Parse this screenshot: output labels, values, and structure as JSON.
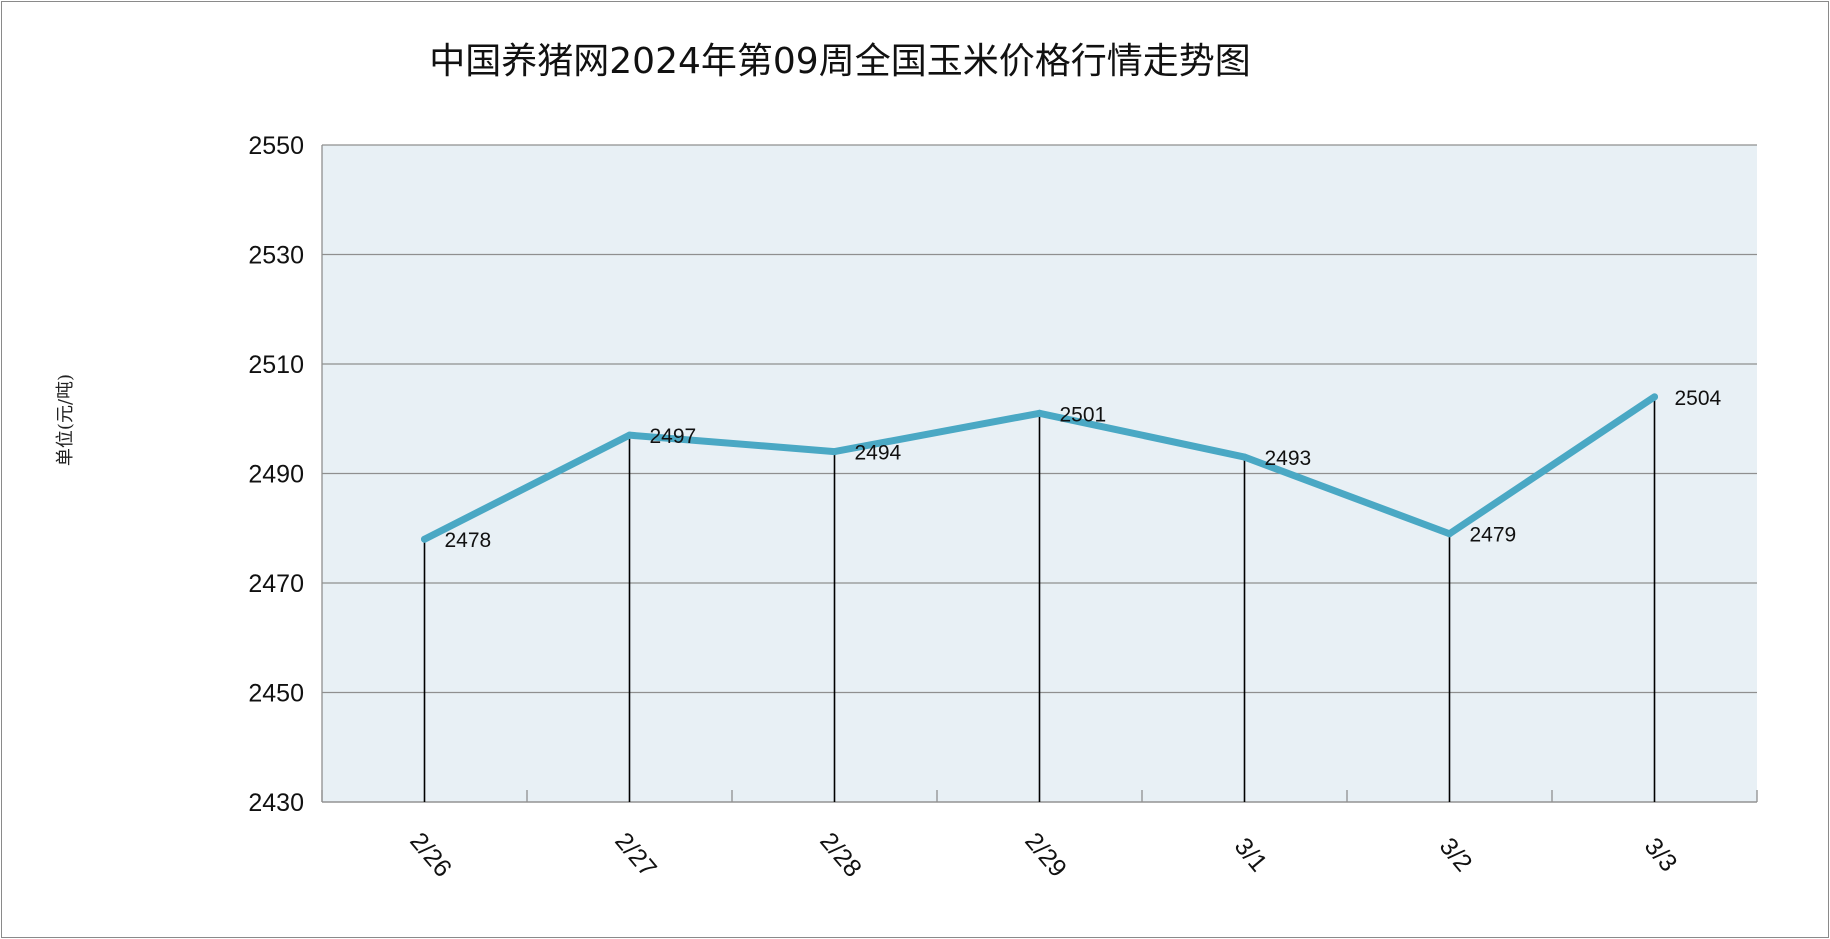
{
  "chart_data": {
    "type": "line",
    "title": "中国养猪网2024年第09周全国玉米价格行情走势图",
    "ylabel": "单位(元/吨)",
    "xlabel": "",
    "categories": [
      "2/26",
      "2/27",
      "2/28",
      "2/29",
      "3/1",
      "3/2",
      "3/3"
    ],
    "series": [
      {
        "values": [
          2478,
          2497,
          2494,
          2501,
          2493,
          2479,
          2504
        ]
      }
    ],
    "ylim": [
      2430,
      2550
    ],
    "yticks": [
      2430,
      2450,
      2470,
      2490,
      2510,
      2530,
      2550
    ],
    "data_labels": [
      "2478",
      "2497",
      "2494",
      "2501",
      "2493",
      "2479",
      "2504"
    ],
    "grid": true,
    "drop_lines": true
  },
  "colors": {
    "line": "#4aa8c4",
    "plot_bg": "#e8f0f5",
    "grid": "#8f8f8f",
    "drop_line": "#000000"
  }
}
